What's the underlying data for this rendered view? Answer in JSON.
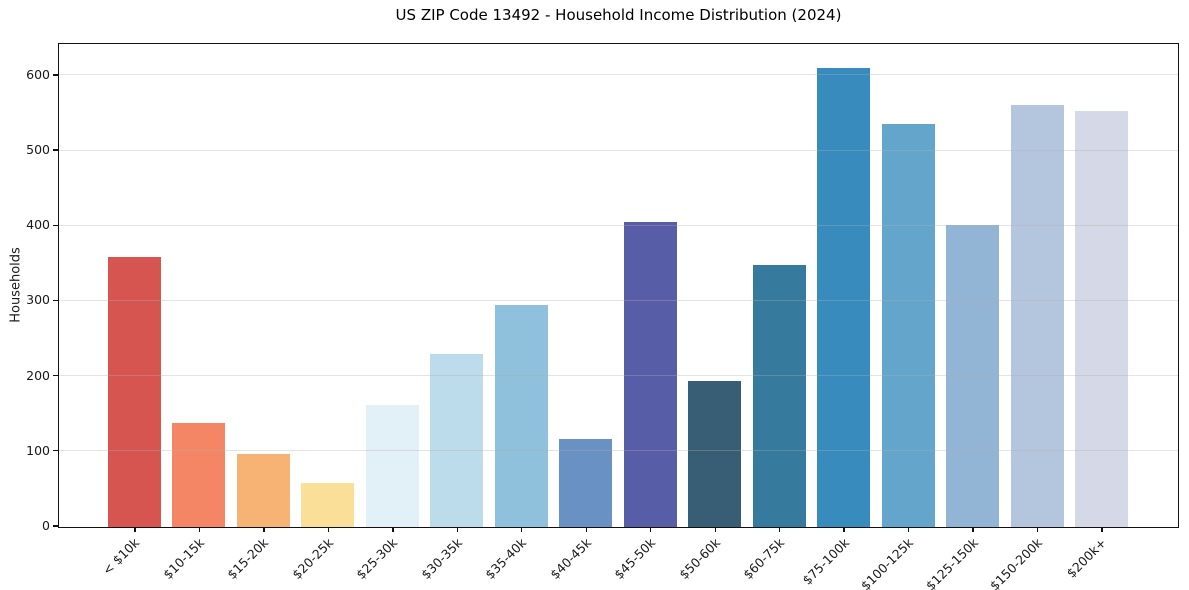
{
  "chart_data": {
    "type": "bar",
    "title": "US ZIP Code 13492 - Household Income Distribution (2024)",
    "xlabel": "",
    "ylabel": "Households",
    "categories": [
      "< $10k",
      "$10-15k",
      "$15-20k",
      "$20-25k",
      "$25-30k",
      "$30-35k",
      "$35-40k",
      "$40-45k",
      "$45-50k",
      "$50-60k",
      "$60-75k",
      "$75-100k",
      "$100-125k",
      "$125-150k",
      "$150-200k",
      "$200k+"
    ],
    "values": [
      358,
      138,
      97,
      58,
      162,
      229,
      295,
      116,
      405,
      194,
      348,
      610,
      535,
      401,
      560,
      553
    ],
    "bar_colors": [
      "#d65550",
      "#f48666",
      "#f7b374",
      "#fadf98",
      "#e2f0f7",
      "#bcdcec",
      "#8fc0dc",
      "#6a91c3",
      "#585da8",
      "#375e75",
      "#367a9d",
      "#388bbd",
      "#64a6cb",
      "#92b5d5",
      "#b4c6de",
      "#d5d8e6"
    ],
    "yticks": [
      0,
      100,
      200,
      300,
      400,
      500,
      600
    ],
    "ylim": [
      0,
      641
    ],
    "grid": "horizontal",
    "legend": "none",
    "background": "#ffffff",
    "x_tick_rotation": 45
  }
}
